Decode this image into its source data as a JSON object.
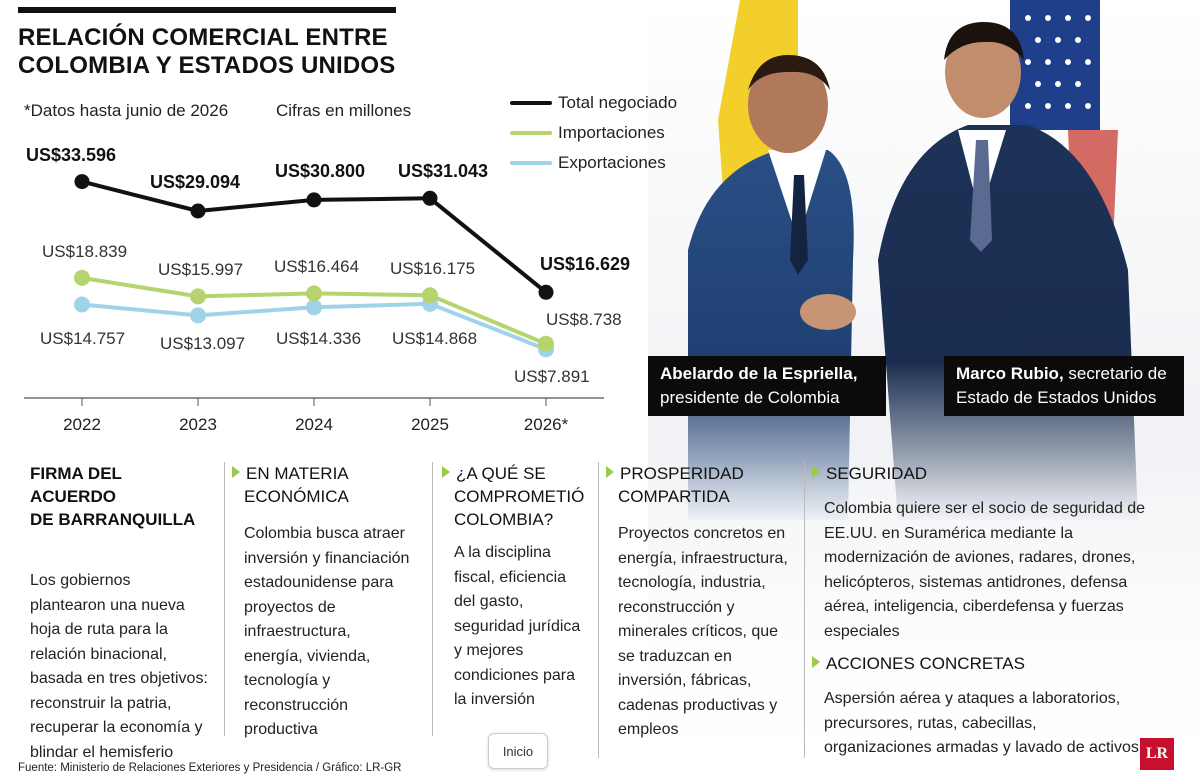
{
  "title_line1": "RELACIÓN COMERCIAL ENTRE",
  "title_line2": "COLOMBIA Y ESTADOS UNIDOS",
  "note_left": "*Datos hasta junio de 2026",
  "note_right": "Cifras en millones",
  "colors": {
    "total": "#111111",
    "importaciones": "#b5d46e",
    "exportaciones": "#9fd3ea",
    "accent_arrow": "#9bc94a",
    "logo": "#c8102e"
  },
  "chart_data": {
    "type": "line",
    "categories": [
      "2022",
      "2023",
      "2024",
      "2025",
      "2026*"
    ],
    "series": [
      {
        "name": "Total negociado",
        "values": [
          33596,
          29094,
          30800,
          31043,
          16629
        ],
        "labels": [
          "US$33.596",
          "US$29.094",
          "US$30.800",
          "US$31.043",
          "US$16.629"
        ]
      },
      {
        "name": "Importaciones",
        "values": [
          18839,
          15997,
          16464,
          16175,
          8738
        ],
        "labels": [
          "US$18.839",
          "US$15.997",
          "US$16.464",
          "US$16.175",
          "US$8.738"
        ]
      },
      {
        "name": "Exportaciones",
        "values": [
          14757,
          13097,
          14336,
          14868,
          7891
        ],
        "labels": [
          "US$14.757",
          "US$13.097",
          "US$14.336",
          "US$14.868",
          "US$7.891"
        ]
      }
    ],
    "grid": false
  },
  "captions": {
    "left_name": "Abelardo de la Espriella,",
    "left_role": "presidente de Colombia",
    "right_name": "Marco Rubio,",
    "right_role1": " secretario de",
    "right_role2": "Estado de Estados Unidos"
  },
  "sections": {
    "firma_title1": "FIRMA DEL ACUERDO",
    "firma_title2": "DE BARRANQUILLA",
    "firma_body": "Los gobiernos plantearon una nueva hoja de ruta para la relación binacional, basada en tres objetivos: reconstruir la patria, recuperar la economía y blindar el hemisferio",
    "economica_title1": "EN MATERIA",
    "economica_title2": "ECONÓMICA",
    "economica_body": "Colombia busca atraer inversión y financiación estadounidense para proyectos de infraestructura, energía, vivienda, tecnología y reconstrucción productiva",
    "compromiso_title1": "¿A QUÉ SE",
    "compromiso_title2": "COMPROMETIÓ",
    "compromiso_title3": "COLOMBIA?",
    "compromiso_body": "A la disciplina fiscal, eficiencia del gasto, seguridad jurídica y mejores condiciones para la inversión",
    "prosperidad_title1": "PROSPERIDAD",
    "prosperidad_title2": "COMPARTIDA",
    "prosperidad_body": "Proyectos concretos en energía, infraestructura, tecnología, industria, reconstrucción y minerales críticos, que se traduzcan en inversión, fábricas, cadenas productivas y empleos",
    "seguridad_title": "SEGURIDAD",
    "seguridad_body": "Colombia quiere ser el socio de seguridad de EE.UU. en Suramérica mediante la modernización de aviones, radares, drones, helicópteros, sistemas antidrones, defensa aérea, inteligencia, ciberdefensa y fuerzas especiales",
    "acciones_title": "ACCIONES CONCRETAS",
    "acciones_body": "Aspersión aérea y ataques a laboratorios, precursores, rutas, cabecillas, organizaciones armadas y lavado de activos"
  },
  "source": "Fuente: Ministerio de Relaciones Exteriores y Presidencia / Gráfico: LR-GR",
  "home_button": "Inicio",
  "logo_text": "LR"
}
